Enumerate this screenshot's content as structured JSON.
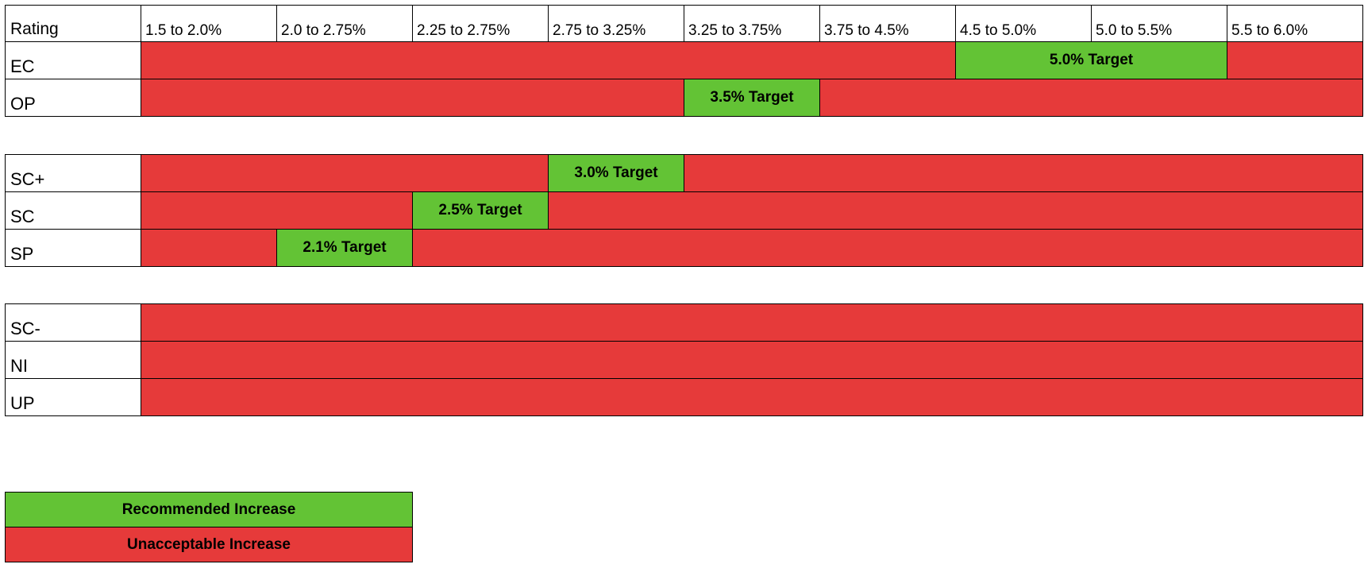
{
  "header": {
    "rating_label": "Rating",
    "bands": [
      "1.5 to 2.0%",
      "2.0 to 2.75%",
      "2.25 to 2.75%",
      "2.75 to 3.25%",
      "3.25 to 3.75%",
      "3.75 to 4.5%",
      "4.5 to 5.0%",
      "5.0 to 5.5%",
      "5.5 to 6.0%"
    ]
  },
  "groups": [
    [
      {
        "label": "EC",
        "target_text": "5.0% Target",
        "target_start_band": 7,
        "target_span": 2
      },
      {
        "label": "OP",
        "target_text": "3.5% Target",
        "target_start_band": 5,
        "target_span": 1
      }
    ],
    [
      {
        "label": "SC+",
        "target_text": "3.0% Target",
        "target_start_band": 4,
        "target_span": 1
      },
      {
        "label": "SC",
        "target_text": "2.5% Target",
        "target_start_band": 3,
        "target_span": 1
      },
      {
        "label": "SP",
        "target_text": "2.1% Target",
        "target_start_band": 2,
        "target_span": 1
      }
    ],
    [
      {
        "label": "SC-"
      },
      {
        "label": "NI"
      },
      {
        "label": "UP"
      }
    ]
  ],
  "legend": {
    "recommended": "Recommended Increase",
    "unacceptable": "Unacceptable Increase"
  },
  "colors": {
    "recommended": "#63c335",
    "unacceptable": "#e63a3a"
  }
}
